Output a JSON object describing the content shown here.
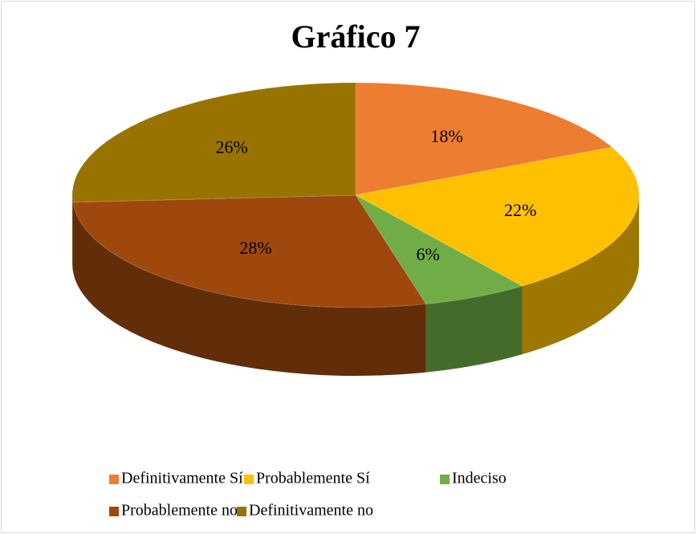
{
  "chart_data": {
    "type": "pie3d",
    "title": "Gráfico 7",
    "categories": [
      "Definitivamente Sí",
      "Probablemente Sí",
      "Indeciso",
      "Probablemente no",
      "Definitivamente no"
    ],
    "values": [
      18,
      22,
      6,
      28,
      26
    ],
    "value_labels": [
      "18%",
      "22%",
      "6%",
      "28%",
      "26%"
    ],
    "colors": [
      "#ed7d31",
      "#ffc000",
      "#70ad47",
      "#9e480e",
      "#997300"
    ],
    "legend": "bottom"
  }
}
